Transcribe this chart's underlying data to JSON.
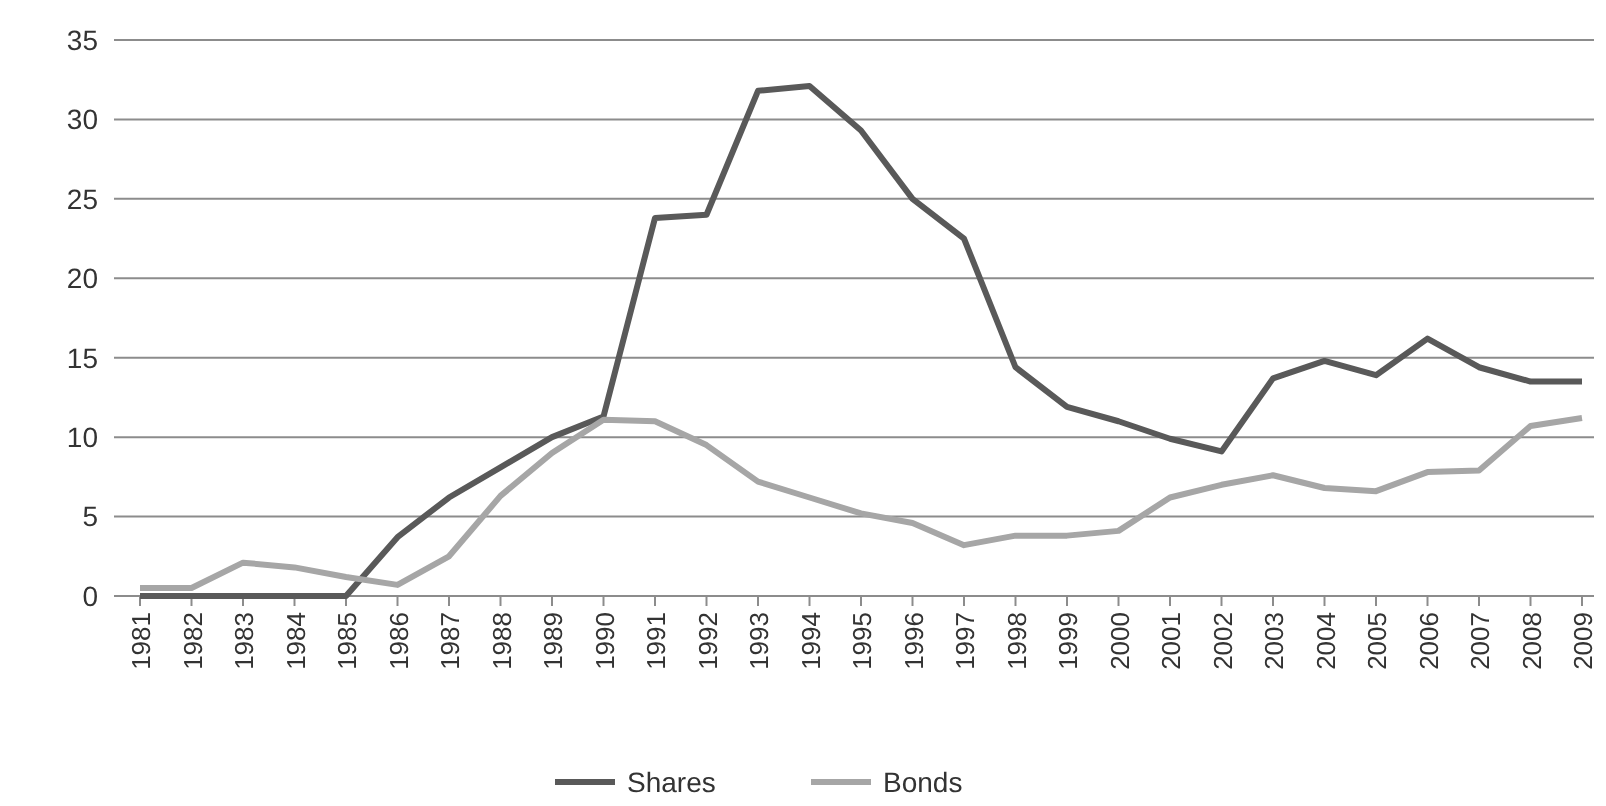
{
  "chart_data": {
    "type": "line",
    "categories": [
      "1981",
      "1982",
      "1983",
      "1984",
      "1985",
      "1986",
      "1987",
      "1988",
      "1989",
      "1990",
      "1991",
      "1992",
      "1993",
      "1994",
      "1995",
      "1996",
      "1997",
      "1998",
      "1999",
      "2000",
      "2001",
      "2002",
      "2003",
      "2004",
      "2005",
      "2006",
      "2007",
      "2008",
      "2009"
    ],
    "series": [
      {
        "name": "Shares",
        "color": "#595959",
        "values": [
          0,
          0,
          0,
          0,
          0,
          3.7,
          6.2,
          8.1,
          10,
          11.3,
          23.8,
          24,
          31.8,
          32.1,
          29.3,
          25,
          22.5,
          14.4,
          11.9,
          11,
          9.9,
          9.1,
          13.7,
          14.8,
          13.9,
          16.2,
          14.4,
          13.5,
          13.5
        ]
      },
      {
        "name": "Bonds",
        "color": "#a6a6a6",
        "values": [
          0.5,
          0.5,
          2.1,
          1.8,
          1.2,
          0.7,
          2.5,
          6.3,
          9,
          11.1,
          11,
          9.5,
          7.2,
          6.2,
          5.2,
          4.6,
          3.2,
          3.8,
          3.8,
          4.1,
          6.2,
          7,
          7.6,
          6.8,
          6.6,
          7.8,
          7.9,
          10.7,
          11.2
        ]
      }
    ],
    "ylim": [
      0,
      35
    ],
    "yticks": [
      0,
      5,
      10,
      15,
      20,
      25,
      30,
      35
    ],
    "grid": "y",
    "legend": "bottom",
    "marker": "none",
    "line_style": "solid"
  }
}
